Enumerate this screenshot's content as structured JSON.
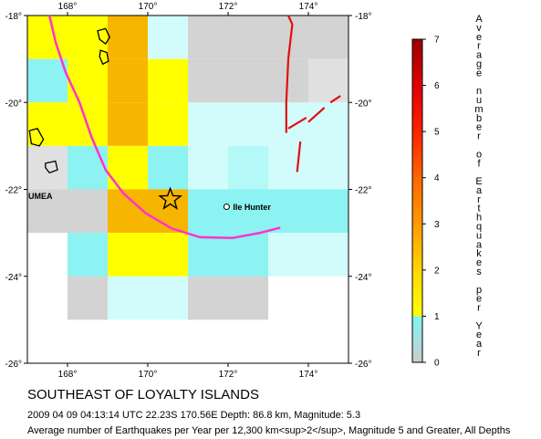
{
  "map": {
    "title": "SOUTHEAST OF LOYALTY ISLANDS",
    "event_line": "2009 04 09 04:13:14 UTC 22.23S 170.56E Depth: 86.8 km, Magnitude: 5.3",
    "caption": "Average number of Earthquakes per Year per 12,300 km<sup>2</sup>, Magnitude 5 and Greater, All Depths",
    "lon_ticks": [
      "168°",
      "170°",
      "172°",
      "174°"
    ],
    "lat_ticks_left": [
      "-18°",
      "-20°",
      "-22°",
      "-24°",
      "-26°"
    ],
    "lat_ticks_right": [
      "-18°",
      "-20°",
      "-22°",
      "-24°",
      "-26°"
    ],
    "places": [
      {
        "name": "UMEA",
        "lon": 167.0,
        "lat": -22.15
      },
      {
        "name": "Ile Hunter",
        "lon": 172.1,
        "lat": -22.4
      }
    ],
    "epicenter": {
      "lon": 170.56,
      "lat": -22.23,
      "symbol": "star"
    },
    "colors": {
      "zero": "#d3d3d3",
      "gray_light": "#e0e0e0",
      "cyan_strong": "#8cf2f2",
      "cyan_mid": "#b4f8f8",
      "cyan_light": "#d2fbfb",
      "yellow": "#ffff00",
      "gold": "#ffd700",
      "orange": "#f7b500",
      "trench": "#ff33cc",
      "ridge": "#e01010",
      "coast": "#000000"
    },
    "rate_grid": {
      "lon_start": 167.0,
      "lat_start": -18.0,
      "cell_deg": 1.0,
      "rows": [
        [
          "yellow",
          "yellow",
          "orange",
          "cyan_light",
          "zero",
          "zero",
          "zero",
          "zero"
        ],
        [
          "cyan_strong",
          "yellow",
          "orange",
          "yellow",
          "zero",
          "zero",
          "zero",
          "gray_light"
        ],
        [
          "yellow",
          "yellow",
          "orange",
          "yellow",
          "cyan_light",
          "cyan_light",
          "cyan_light",
          "cyan_light"
        ],
        [
          "gray_light",
          "cyan_strong",
          "yellow",
          "cyan_strong",
          "cyan_light",
          "cyan_mid",
          "cyan_light",
          "cyan_light"
        ],
        [
          "zero",
          "zero",
          "orange",
          "orange",
          "cyan_strong",
          "cyan_strong",
          "cyan_strong",
          "cyan_strong"
        ],
        [
          "none",
          "cyan_strong",
          "yellow",
          "yellow",
          "cyan_strong",
          "cyan_strong",
          "cyan_light",
          "cyan_light"
        ],
        [
          "none",
          "zero",
          "cyan_light",
          "cyan_light",
          "zero",
          "zero",
          "none",
          "none"
        ],
        [
          "none",
          "none",
          "none",
          "none",
          "none",
          "none",
          "none",
          "none"
        ],
        [
          "zero",
          "none",
          "zero",
          "zero",
          "none",
          "none",
          "none",
          "none"
        ]
      ]
    },
    "trench_path": [
      [
        167.55,
        -18.0
      ],
      [
        167.7,
        -18.6
      ],
      [
        167.95,
        -19.3
      ],
      [
        168.3,
        -20.0
      ],
      [
        168.6,
        -20.8
      ],
      [
        168.95,
        -21.55
      ],
      [
        169.4,
        -22.1
      ],
      [
        169.95,
        -22.55
      ],
      [
        170.6,
        -22.9
      ],
      [
        171.3,
        -23.1
      ],
      [
        172.1,
        -23.12
      ],
      [
        172.8,
        -23.0
      ],
      [
        173.3,
        -22.88
      ]
    ],
    "ridge_segments": [
      [
        [
          173.5,
          -18.0
        ],
        [
          173.6,
          -18.2
        ],
        [
          173.5,
          -19.0
        ],
        [
          173.45,
          -20.0
        ],
        [
          173.45,
          -20.7
        ]
      ],
      [
        [
          173.5,
          -20.6
        ],
        [
          173.95,
          -20.35
        ]
      ],
      [
        [
          174.0,
          -20.45
        ],
        [
          174.4,
          -20.12
        ]
      ],
      [
        [
          174.55,
          -20.0
        ],
        [
          174.8,
          -19.85
        ]
      ],
      [
        [
          173.8,
          -20.9
        ],
        [
          173.72,
          -21.6
        ]
      ]
    ],
    "islands": [
      [
        [
          168.75,
          -18.35
        ],
        [
          168.95,
          -18.3
        ],
        [
          169.05,
          -18.5
        ],
        [
          168.95,
          -18.65
        ],
        [
          168.8,
          -18.55
        ]
      ],
      [
        [
          168.82,
          -18.8
        ],
        [
          168.98,
          -18.85
        ],
        [
          169.02,
          -19.05
        ],
        [
          168.88,
          -19.12
        ],
        [
          168.8,
          -18.95
        ]
      ],
      [
        [
          167.05,
          -20.65
        ],
        [
          167.25,
          -20.6
        ],
        [
          167.4,
          -20.85
        ],
        [
          167.3,
          -21.0
        ],
        [
          167.1,
          -20.95
        ]
      ],
      [
        [
          167.45,
          -21.4
        ],
        [
          167.7,
          -21.35
        ],
        [
          167.75,
          -21.55
        ],
        [
          167.55,
          -21.62
        ],
        [
          167.45,
          -21.5
        ]
      ]
    ],
    "legend": {
      "title_chars": [
        "A",
        "v",
        "e",
        "r",
        "a",
        "g",
        "e",
        "",
        "n",
        "u",
        "m",
        "b",
        "e",
        "r",
        "",
        "o",
        "f",
        "",
        "E",
        "a",
        "r",
        "t",
        "h",
        "q",
        "u",
        "a",
        "k",
        "e",
        "s",
        "",
        "p",
        "e",
        "r",
        "",
        "Y",
        "e",
        "a",
        "r"
      ],
      "tick_labels": [
        "0",
        "1",
        "2",
        "3",
        "4",
        "5",
        "6",
        "7"
      ],
      "scale_min": 0,
      "scale_max": 7,
      "gradient_stops": [
        {
          "value": 0,
          "color": "#cccccc"
        },
        {
          "value": 1,
          "color": "#80f5f5"
        },
        {
          "value": 1.001,
          "color": "#ffff00"
        },
        {
          "value": 2,
          "color": "#ffd700"
        },
        {
          "value": 3,
          "color": "#ff9900"
        },
        {
          "value": 4,
          "color": "#ff6600"
        },
        {
          "value": 5,
          "color": "#ff2200"
        },
        {
          "value": 6,
          "color": "#e00000"
        },
        {
          "value": 7,
          "color": "#9a0000"
        }
      ]
    }
  }
}
